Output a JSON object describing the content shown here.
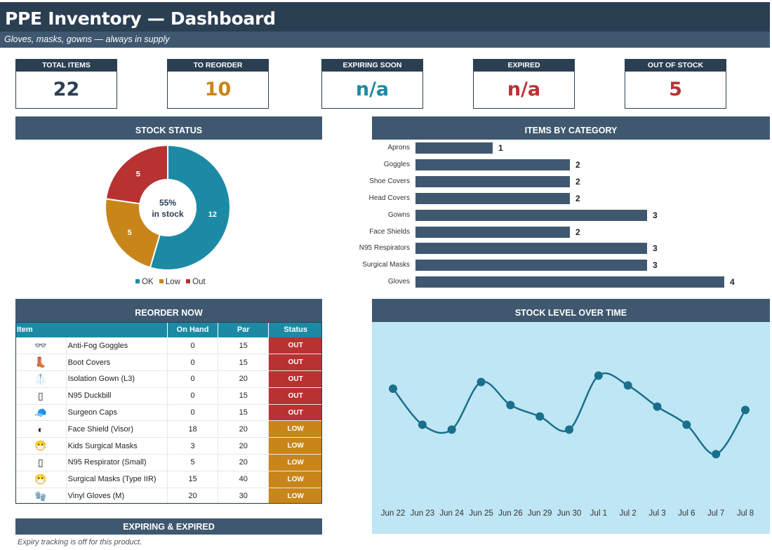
{
  "header": {
    "title": "PPE Inventory — Dashboard",
    "subtitle": "Gloves, masks, gowns — always in supply"
  },
  "kpis": [
    {
      "label": "TOTAL ITEMS",
      "value": "22",
      "color": "#2b3f53"
    },
    {
      "label": "TO REORDER",
      "value": "10",
      "color": "#c8861a"
    },
    {
      "label": "EXPIRING SOON",
      "value": "n/a",
      "color": "#1d8aa5"
    },
    {
      "label": "EXPIRED",
      "value": "n/a",
      "color": "#b83232"
    },
    {
      "label": "OUT OF STOCK",
      "value": "5",
      "color": "#b83232"
    }
  ],
  "panels": {
    "stock_status": "STOCK STATUS",
    "items_by_category": "ITEMS BY CATEGORY",
    "reorder_now": "REORDER NOW",
    "stock_over_time": "STOCK LEVEL OVER TIME",
    "expiring": "EXPIRING & EXPIRED"
  },
  "donut": {
    "center_line1": "55%",
    "center_line2": "in stock"
  },
  "reorder_table": {
    "headers": [
      "Item",
      "On Hand",
      "Par",
      "Status"
    ],
    "rows": [
      {
        "icon": "goggles-icon",
        "glyph": "👓",
        "item": "Anti-Fog Goggles",
        "on_hand": "0",
        "par": "15",
        "status": "OUT"
      },
      {
        "icon": "boot-icon",
        "glyph": "👢",
        "item": "Boot Covers",
        "on_hand": "0",
        "par": "15",
        "status": "OUT"
      },
      {
        "icon": "gown-icon",
        "glyph": "🥼",
        "item": "Isolation Gown (L3)",
        "on_hand": "0",
        "par": "20",
        "status": "OUT"
      },
      {
        "icon": "respirator-icon",
        "glyph": "▯",
        "item": "N95 Duckbill",
        "on_hand": "0",
        "par": "15",
        "status": "OUT"
      },
      {
        "icon": "cap-icon",
        "glyph": "🧢",
        "item": "Surgeon Caps",
        "on_hand": "0",
        "par": "15",
        "status": "OUT"
      },
      {
        "icon": "face-shield-icon",
        "glyph": "◐",
        "item": "Face Shield (Visor)",
        "on_hand": "18",
        "par": "20",
        "status": "LOW"
      },
      {
        "icon": "mask-face-icon",
        "glyph": "😷",
        "item": "Kids Surgical Masks",
        "on_hand": "3",
        "par": "20",
        "status": "LOW"
      },
      {
        "icon": "respirator-icon",
        "glyph": "▯",
        "item": "N95 Respirator (Small)",
        "on_hand": "5",
        "par": "20",
        "status": "LOW"
      },
      {
        "icon": "mask-face-icon",
        "glyph": "😷",
        "item": "Surgical Masks (Type IIR)",
        "on_hand": "15",
        "par": "40",
        "status": "LOW"
      },
      {
        "icon": "glove-icon",
        "glyph": "🧤",
        "item": "Vinyl Gloves (M)",
        "on_hand": "20",
        "par": "30",
        "status": "LOW"
      }
    ],
    "status_colors": {
      "OUT": "#b83232",
      "LOW": "#c8861a"
    }
  },
  "expiry_note": "Expiry tracking is off for this product.",
  "chart_data": [
    {
      "type": "pie",
      "title": "STOCK STATUS",
      "labels": [
        "OK",
        "Low",
        "Out"
      ],
      "values": [
        12,
        5,
        5
      ],
      "colors": [
        "#1d8aa5",
        "#c8861a",
        "#b83232"
      ],
      "legend": "bottom"
    },
    {
      "type": "bar",
      "orientation": "horizontal",
      "title": "ITEMS BY CATEGORY",
      "categories": [
        "Aprons",
        "Goggles",
        "Shoe Covers",
        "Head Covers",
        "Gowns",
        "Face Shields",
        "N95 Respirators",
        "Surgical Masks",
        "Gloves"
      ],
      "values": [
        1,
        2,
        2,
        2,
        3,
        2,
        3,
        3,
        4
      ],
      "color": "#3f5870"
    },
    {
      "type": "line",
      "title": "STOCK LEVEL OVER TIME",
      "x": [
        "Jun 22",
        "Jun 23",
        "Jun 24",
        "Jun 25",
        "Jun 26",
        "Jun 29",
        "Jun 30",
        "Jul 1",
        "Jul 2",
        "Jul 3",
        "Jul 6",
        "Jul 7",
        "Jul 8"
      ],
      "values": [
        70,
        48,
        45,
        74,
        60,
        53,
        45,
        78,
        72,
        59,
        48,
        30,
        57
      ],
      "color": "#1a6f8c",
      "background": "#bfe6f4"
    }
  ]
}
